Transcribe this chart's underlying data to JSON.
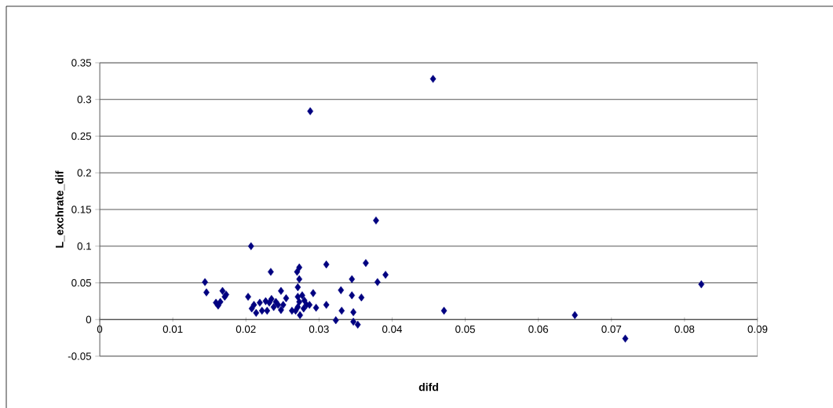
{
  "chart_data": {
    "type": "scatter",
    "xlabel": "difd",
    "ylabel": "L_exchrate_dif",
    "xlim": [
      0,
      0.09
    ],
    "xticks": [
      0,
      0.01,
      0.02,
      0.03,
      0.04,
      0.05,
      0.06,
      0.07,
      0.08,
      0.09
    ],
    "ylim": [
      -0.05,
      0.35
    ],
    "yticks": [
      -0.05,
      0,
      0.05,
      0.1,
      0.15,
      0.2,
      0.25,
      0.3,
      0.35
    ],
    "grid": "y",
    "marker": "diamond",
    "series": [
      {
        "color": "#000080",
        "x": [
          0.0144,
          0.0146,
          0.0159,
          0.0162,
          0.0165,
          0.0168,
          0.0171,
          0.0173,
          0.0203,
          0.0207,
          0.0208,
          0.0211,
          0.0214,
          0.0219,
          0.0222,
          0.0227,
          0.0229,
          0.0232,
          0.0234,
          0.0235,
          0.0238,
          0.0241,
          0.0244,
          0.0248,
          0.0248,
          0.0251,
          0.0255,
          0.0263,
          0.0268,
          0.027,
          0.0273,
          0.0273,
          0.0271,
          0.0271,
          0.0273,
          0.0271,
          0.0274,
          0.0277,
          0.0279,
          0.028,
          0.0283,
          0.0292,
          0.0288,
          0.0296,
          0.0287,
          0.031,
          0.031,
          0.0323,
          0.033,
          0.0331,
          0.0345,
          0.0345,
          0.0347,
          0.0347,
          0.0353,
          0.0358,
          0.0364,
          0.0378,
          0.038,
          0.0391,
          0.0456,
          0.0471,
          0.065,
          0.0719,
          0.0823
        ],
        "values": [
          0.051,
          0.037,
          0.023,
          0.019,
          0.024,
          0.039,
          0.031,
          0.034,
          0.031,
          0.1,
          0.015,
          0.02,
          0.009,
          0.023,
          0.012,
          0.025,
          0.012,
          0.023,
          0.065,
          0.028,
          0.017,
          0.024,
          0.02,
          0.039,
          0.013,
          0.02,
          0.029,
          0.012,
          0.012,
          0.065,
          0.071,
          0.055,
          0.044,
          0.031,
          0.024,
          0.017,
          0.006,
          0.033,
          0.015,
          0.026,
          0.02,
          0.036,
          0.284,
          0.016,
          0.02,
          0.075,
          0.02,
          -0.001,
          0.04,
          0.012,
          0.055,
          0.033,
          0.01,
          -0.003,
          -0.007,
          0.03,
          0.077,
          0.135,
          0.051,
          0.061,
          0.328,
          0.012,
          0.006,
          -0.026,
          0.048
        ]
      }
    ]
  }
}
